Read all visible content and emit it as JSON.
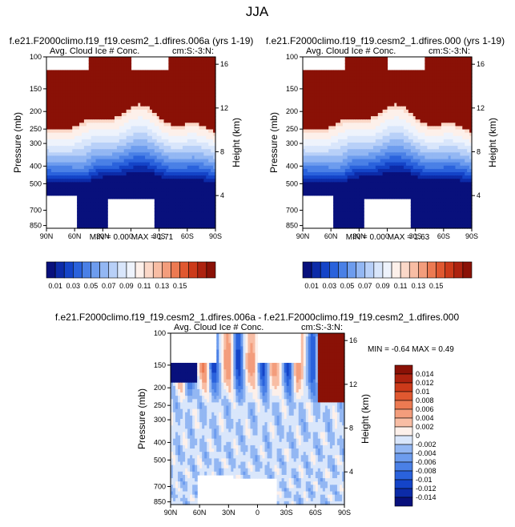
{
  "page_title": "JJA",
  "colors": {
    "blues": [
      "#08107c",
      "#0c2ba8",
      "#1444c8",
      "#2a62dc",
      "#4a80e6",
      "#6d9cee",
      "#93b7f3",
      "#b8d0f8",
      "#d9e6fb",
      "#eef3fc"
    ],
    "reds": [
      "#fdf0ea",
      "#fbd8c8",
      "#f8bda4",
      "#f39d7c",
      "#ec7a52",
      "#e05830",
      "#cc3a1a",
      "#ad220f",
      "#8a1106"
    ],
    "missing": "#ffffff"
  },
  "chart_data": [
    {
      "type": "heatmap",
      "title": "f.e21.F2000climo.f19_f19.cesm2_1.dfires.006a (yrs 1-19)",
      "left_label": "Avg. Cloud Ice # Conc.",
      "right_label": "cm:S:-3:N:",
      "ylabel": "Pressure (mb)",
      "ylabel_right": "Height (km)",
      "x_ticks": [
        "90N",
        "60N",
        "30N",
        "0",
        "30S",
        "60S",
        "90S"
      ],
      "y_ticks": [
        "100",
        "150",
        "200",
        "250",
        "300",
        "400",
        "500",
        "700",
        "850"
      ],
      "y_ticks_right": [
        "16",
        "12",
        "8",
        "4"
      ],
      "stats": "MIN =  0.00  MAX =  1.71",
      "colorbar_labels": [
        "0.01",
        "0.03",
        "0.05",
        "0.07",
        "0.09",
        "0.11",
        "0.13",
        "0.15"
      ]
    },
    {
      "type": "heatmap",
      "title": "f.e21.F2000climo.f19_f19.cesm2_1.dfires.000 (yrs 1-19)",
      "left_label": "Avg. Cloud Ice # Conc.",
      "right_label": "cm:S:-3:N:",
      "ylabel": "Pressure (mb)",
      "ylabel_right": "Height (km)",
      "x_ticks": [
        "90N",
        "60N",
        "30N",
        "0",
        "30S",
        "60S",
        "90S"
      ],
      "y_ticks": [
        "100",
        "150",
        "200",
        "250",
        "300",
        "400",
        "500",
        "700",
        "850"
      ],
      "y_ticks_right": [
        "16",
        "12",
        "8",
        "4"
      ],
      "stats": "MIN =  0.00  MAX =  1.63",
      "colorbar_labels": [
        "0.01",
        "0.03",
        "0.05",
        "0.07",
        "0.09",
        "0.11",
        "0.13",
        "0.15"
      ]
    },
    {
      "type": "heatmap",
      "title": "f.e21.F2000climo.f19_f19.cesm2_1.dfires.006a - f.e21.F2000climo.f19_f19.cesm2_1.dfires.000",
      "left_label": "Avg. Cloud Ice # Conc.",
      "right_label": "cm:S:-3:N:",
      "ylabel": "Pressure (mb)",
      "ylabel_right": "Height (km)",
      "x_ticks": [
        "90N",
        "60N",
        "30N",
        "0",
        "30S",
        "60S",
        "90S"
      ],
      "y_ticks": [
        "100",
        "150",
        "200",
        "250",
        "300",
        "400",
        "500",
        "700",
        "850"
      ],
      "y_ticks_right": [
        "16",
        "12",
        "8",
        "4"
      ],
      "stats": "MIN = -0.64  MAX =  0.49",
      "colorbar_labels": [
        "0.014",
        "0.012",
        "0.01",
        "0.008",
        "0.006",
        "0.004",
        "0.002",
        "0",
        "-0.002",
        "-0.004",
        "-0.006",
        "-0.008",
        "-0.01",
        "-0.012",
        "-0.014"
      ]
    }
  ]
}
